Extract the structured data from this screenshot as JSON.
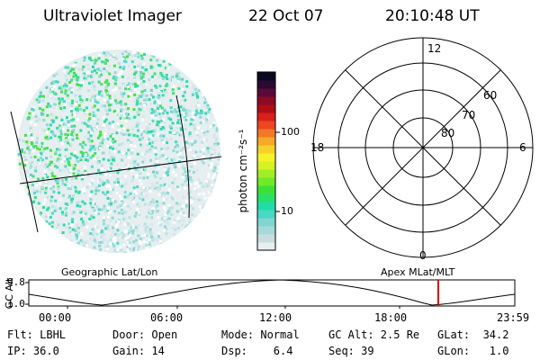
{
  "header": {
    "instrument": "Ultraviolet Imager",
    "date": "22 Oct 07",
    "time": "20:10:48 UT"
  },
  "colorbar": {
    "unit": "photon cm⁻²s⁻¹",
    "tick_100": "100",
    "tick_10": "10",
    "colors": [
      "#e8eef0",
      "#c8dde0",
      "#a6d9d9",
      "#7fd6d0",
      "#49d8c4",
      "#22dca6",
      "#28e06a",
      "#3be236",
      "#6fea2a",
      "#a2ee26",
      "#d6f224",
      "#f6f22a",
      "#f6d228",
      "#f6a828",
      "#f27826",
      "#ec4622",
      "#d8201c",
      "#b00e16",
      "#8a0a28",
      "#5a0a38",
      "#2a0a32",
      "#0a0820"
    ]
  },
  "polar": {
    "label_top": "12",
    "label_left": "18",
    "label_right": "6",
    "label_bottom": "0",
    "ring_60": "60",
    "ring_70": "70",
    "ring_80": "80"
  },
  "timeline": {
    "ylabel": "GC Alt",
    "ytick_top": "9.8",
    "ytick_bottom": "1.0",
    "left_caption": "Geographic Lat/Lon",
    "right_caption": "Apex MLat/MLT",
    "xticks": [
      "00:00",
      "06:00",
      "12:00",
      "18:00",
      "23:59"
    ],
    "marker_color": "#e00000"
  },
  "status": {
    "flt": "Flt: LBHL",
    "door": "Door: Open",
    "mode": "Mode: Normal",
    "gcalt": "GC Alt: 2.5 Re",
    "glat": "GLat:  34.2",
    "ip": "IP: 36.0",
    "gain": "Gain: 14",
    "dsp": "Dsp:    6.4",
    "seq": "Seq: 39",
    "glon": "GLon:   1.0"
  }
}
